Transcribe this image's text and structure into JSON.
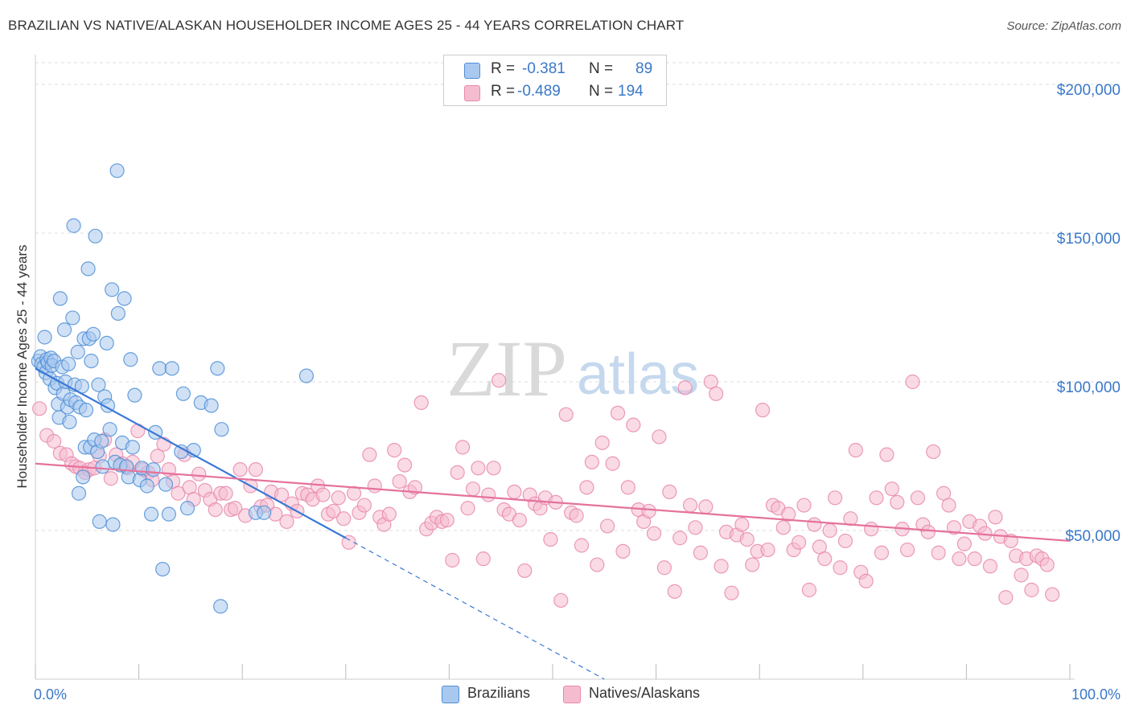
{
  "title": "BRAZILIAN VS NATIVE/ALASKAN HOUSEHOLDER INCOME AGES 25 - 44 YEARS CORRELATION CHART",
  "source": "Source: ZipAtlas.com",
  "watermark": {
    "zip": "ZIP",
    "atlas": "atlas"
  },
  "colors": {
    "blue_fill": "#a9c8ef",
    "blue_stroke": "#4f8fd6",
    "blue_line": "#3a78d6",
    "pink_fill": "#f5bcd0",
    "pink_stroke": "#e889ab",
    "pink_line": "#e5729c",
    "value_text": "#3a78c9",
    "grid": "#dddddd"
  },
  "legend": {
    "rows": [
      {
        "r_label": "R =",
        "r_value": "-0.381",
        "n_label": "N =",
        "n_value": "89"
      },
      {
        "r_label": "R =",
        "r_value": "-0.489",
        "n_label": "N =",
        "n_value": "194"
      }
    ]
  },
  "bottom_legend": [
    "Brazilians",
    "Natives/Alaskans"
  ],
  "chart_data": {
    "type": "scatter",
    "title": "BRAZILIAN VS NATIVE/ALASKAN HOUSEHOLDER INCOME AGES 25 - 44 YEARS CORRELATION CHART",
    "xlabel": "",
    "ylabel": "Householder Income Ages 25 - 44 years",
    "xlim": [
      0,
      100
    ],
    "ylim": [
      0,
      210000
    ],
    "x_tick_labels": [
      "0.0%",
      "100.0%"
    ],
    "y_ticks": [
      50000,
      100000,
      150000,
      200000
    ],
    "y_tick_labels": [
      "$50,000",
      "$100,000",
      "$150,000",
      "$200,000"
    ],
    "grid": true,
    "legend_position": "top-center",
    "series": [
      {
        "name": "Brazilians",
        "R": -0.381,
        "N": 89,
        "trend": {
          "x0": 0,
          "y0": 104500,
          "x1": 30,
          "y1": 47500,
          "dash_to_x": 55,
          "dash_to_y": 0
        },
        "points": [
          [
            0.3,
            107000
          ],
          [
            0.5,
            108500
          ],
          [
            0.6,
            106000
          ],
          [
            0.8,
            105000
          ],
          [
            0.9,
            115000
          ],
          [
            1.0,
            103000
          ],
          [
            1.1,
            107500
          ],
          [
            1.2,
            106500
          ],
          [
            1.4,
            101000
          ],
          [
            1.5,
            108000
          ],
          [
            1.6,
            105500
          ],
          [
            1.8,
            107000
          ],
          [
            1.9,
            98000
          ],
          [
            2.1,
            99500
          ],
          [
            2.2,
            92500
          ],
          [
            2.3,
            88000
          ],
          [
            2.4,
            128000
          ],
          [
            2.6,
            105000
          ],
          [
            2.7,
            96000
          ],
          [
            2.8,
            117500
          ],
          [
            2.9,
            100000
          ],
          [
            3.1,
            91500
          ],
          [
            3.2,
            106000
          ],
          [
            3.3,
            86500
          ],
          [
            3.4,
            94000
          ],
          [
            3.6,
            121500
          ],
          [
            3.7,
            152500
          ],
          [
            3.8,
            99000
          ],
          [
            3.9,
            93000
          ],
          [
            4.1,
            110000
          ],
          [
            4.2,
            62500
          ],
          [
            4.3,
            91500
          ],
          [
            4.5,
            98500
          ],
          [
            4.6,
            68000
          ],
          [
            4.7,
            114500
          ],
          [
            4.8,
            78000
          ],
          [
            4.9,
            90500
          ],
          [
            5.1,
            138000
          ],
          [
            5.2,
            114500
          ],
          [
            5.3,
            78000
          ],
          [
            5.4,
            107000
          ],
          [
            5.6,
            116000
          ],
          [
            5.7,
            80500
          ],
          [
            5.8,
            149000
          ],
          [
            6.0,
            76500
          ],
          [
            6.1,
            99000
          ],
          [
            6.2,
            53000
          ],
          [
            6.4,
            80000
          ],
          [
            6.5,
            71500
          ],
          [
            6.7,
            95000
          ],
          [
            6.9,
            113000
          ],
          [
            7.0,
            92000
          ],
          [
            7.2,
            84000
          ],
          [
            7.4,
            131000
          ],
          [
            7.5,
            52000
          ],
          [
            7.7,
            73000
          ],
          [
            7.9,
            171000
          ],
          [
            8.0,
            123000
          ],
          [
            8.2,
            72000
          ],
          [
            8.4,
            79500
          ],
          [
            8.6,
            128000
          ],
          [
            8.8,
            71500
          ],
          [
            9.0,
            68000
          ],
          [
            9.2,
            107500
          ],
          [
            9.4,
            78000
          ],
          [
            9.6,
            95500
          ],
          [
            10.1,
            67000
          ],
          [
            10.3,
            71000
          ],
          [
            10.8,
            65000
          ],
          [
            11.2,
            55500
          ],
          [
            11.4,
            70500
          ],
          [
            11.6,
            83000
          ],
          [
            12.0,
            104500
          ],
          [
            12.3,
            37000
          ],
          [
            12.6,
            65500
          ],
          [
            12.9,
            55500
          ],
          [
            13.2,
            104500
          ],
          [
            14.1,
            76500
          ],
          [
            14.3,
            96000
          ],
          [
            14.7,
            57500
          ],
          [
            15.3,
            77000
          ],
          [
            16.0,
            93000
          ],
          [
            17.0,
            92000
          ],
          [
            17.6,
            104500
          ],
          [
            17.9,
            24500
          ],
          [
            18.0,
            84000
          ],
          [
            21.3,
            56000
          ],
          [
            22.1,
            56000
          ],
          [
            26.2,
            102000
          ]
        ]
      },
      {
        "name": "Natives/Alaskans",
        "R": -0.489,
        "N": 194,
        "trend": {
          "x0": 0,
          "y0": 72500,
          "x1": 100,
          "y1": 46500
        },
        "points": [
          [
            0.4,
            91000
          ],
          [
            1.1,
            82000
          ],
          [
            1.8,
            80000
          ],
          [
            2.4,
            76000
          ],
          [
            3.0,
            75500
          ],
          [
            3.5,
            72500
          ],
          [
            3.9,
            71500
          ],
          [
            4.3,
            71000
          ],
          [
            4.8,
            69500
          ],
          [
            5.2,
            70500
          ],
          [
            5.7,
            71000
          ],
          [
            6.2,
            75000
          ],
          [
            6.7,
            80500
          ],
          [
            7.3,
            67500
          ],
          [
            7.8,
            75500
          ],
          [
            8.4,
            72500
          ],
          [
            8.9,
            71000
          ],
          [
            9.4,
            73000
          ],
          [
            9.9,
            83500
          ],
          [
            10.4,
            70500
          ],
          [
            10.9,
            69500
          ],
          [
            11.3,
            67000
          ],
          [
            11.8,
            75000
          ],
          [
            12.4,
            79000
          ],
          [
            12.9,
            70500
          ],
          [
            13.3,
            66500
          ],
          [
            13.8,
            62500
          ],
          [
            14.4,
            75500
          ],
          [
            14.9,
            64500
          ],
          [
            15.3,
            60500
          ],
          [
            15.8,
            69000
          ],
          [
            16.4,
            63500
          ],
          [
            16.9,
            60500
          ],
          [
            17.4,
            57000
          ],
          [
            17.9,
            62500
          ],
          [
            18.4,
            62500
          ],
          [
            18.9,
            57000
          ],
          [
            19.3,
            57500
          ],
          [
            19.8,
            70500
          ],
          [
            20.3,
            55000
          ],
          [
            20.8,
            65000
          ],
          [
            21.3,
            70500
          ],
          [
            21.8,
            58000
          ],
          [
            22.4,
            58500
          ],
          [
            22.8,
            63000
          ],
          [
            23.2,
            55500
          ],
          [
            23.8,
            62000
          ],
          [
            24.3,
            53000
          ],
          [
            24.8,
            59000
          ],
          [
            25.3,
            56500
          ],
          [
            25.8,
            62500
          ],
          [
            26.3,
            62000
          ],
          [
            26.8,
            60500
          ],
          [
            27.3,
            65000
          ],
          [
            27.8,
            62000
          ],
          [
            28.3,
            55500
          ],
          [
            28.8,
            56500
          ],
          [
            29.3,
            61000
          ],
          [
            29.8,
            54000
          ],
          [
            30.3,
            46000
          ],
          [
            30.8,
            62500
          ],
          [
            31.3,
            56000
          ],
          [
            31.8,
            58500
          ],
          [
            32.3,
            75500
          ],
          [
            32.8,
            65000
          ],
          [
            33.3,
            54500
          ],
          [
            33.7,
            52000
          ],
          [
            34.2,
            55500
          ],
          [
            34.7,
            77000
          ],
          [
            35.2,
            66500
          ],
          [
            35.7,
            72000
          ],
          [
            36.2,
            63000
          ],
          [
            36.7,
            64500
          ],
          [
            37.3,
            93000
          ],
          [
            37.8,
            50500
          ],
          [
            38.3,
            52500
          ],
          [
            38.8,
            54500
          ],
          [
            39.3,
            53000
          ],
          [
            39.8,
            53500
          ],
          [
            40.3,
            40000
          ],
          [
            40.8,
            69500
          ],
          [
            41.3,
            78000
          ],
          [
            41.8,
            57500
          ],
          [
            42.3,
            64000
          ],
          [
            42.8,
            71000
          ],
          [
            43.3,
            40500
          ],
          [
            43.8,
            62000
          ],
          [
            44.3,
            71000
          ],
          [
            44.8,
            100500
          ],
          [
            45.3,
            57000
          ],
          [
            45.8,
            55500
          ],
          [
            46.3,
            63000
          ],
          [
            46.8,
            53500
          ],
          [
            47.3,
            36500
          ],
          [
            47.8,
            62000
          ],
          [
            48.3,
            59000
          ],
          [
            48.8,
            57500
          ],
          [
            49.3,
            61000
          ],
          [
            49.8,
            47000
          ],
          [
            50.3,
            59500
          ],
          [
            50.8,
            26500
          ],
          [
            51.3,
            89000
          ],
          [
            51.8,
            56000
          ],
          [
            52.3,
            55000
          ],
          [
            52.8,
            45000
          ],
          [
            53.3,
            64500
          ],
          [
            53.8,
            73000
          ],
          [
            54.3,
            38500
          ],
          [
            54.8,
            79500
          ],
          [
            55.3,
            51500
          ],
          [
            55.8,
            72500
          ],
          [
            56.3,
            89500
          ],
          [
            56.8,
            43000
          ],
          [
            57.3,
            64500
          ],
          [
            57.8,
            85500
          ],
          [
            58.3,
            57000
          ],
          [
            58.8,
            53000
          ],
          [
            59.3,
            56500
          ],
          [
            59.8,
            49000
          ],
          [
            60.3,
            81500
          ],
          [
            60.8,
            37500
          ],
          [
            61.3,
            63000
          ],
          [
            61.8,
            29500
          ],
          [
            62.3,
            47500
          ],
          [
            62.8,
            98000
          ],
          [
            63.3,
            58500
          ],
          [
            63.8,
            51000
          ],
          [
            64.3,
            42500
          ],
          [
            64.8,
            58000
          ],
          [
            65.3,
            100000
          ],
          [
            65.8,
            96000
          ],
          [
            66.3,
            38000
          ],
          [
            66.8,
            49500
          ],
          [
            67.3,
            29000
          ],
          [
            67.8,
            48500
          ],
          [
            68.3,
            52000
          ],
          [
            68.8,
            47000
          ],
          [
            69.3,
            38500
          ],
          [
            69.8,
            43000
          ],
          [
            70.3,
            90500
          ],
          [
            70.8,
            43500
          ],
          [
            71.3,
            58500
          ],
          [
            71.8,
            57500
          ],
          [
            72.3,
            51000
          ],
          [
            72.8,
            55500
          ],
          [
            73.3,
            43500
          ],
          [
            73.8,
            46000
          ],
          [
            74.3,
            58500
          ],
          [
            74.8,
            30000
          ],
          [
            75.3,
            52000
          ],
          [
            75.8,
            44500
          ],
          [
            76.3,
            40500
          ],
          [
            76.8,
            50000
          ],
          [
            77.3,
            61000
          ],
          [
            77.8,
            37500
          ],
          [
            78.3,
            46500
          ],
          [
            78.8,
            54000
          ],
          [
            79.3,
            77000
          ],
          [
            79.8,
            36000
          ],
          [
            80.3,
            33000
          ],
          [
            80.8,
            50500
          ],
          [
            81.3,
            61000
          ],
          [
            81.8,
            42500
          ],
          [
            82.3,
            75500
          ],
          [
            82.8,
            64000
          ],
          [
            83.3,
            59500
          ],
          [
            83.8,
            50500
          ],
          [
            84.3,
            43500
          ],
          [
            84.8,
            100000
          ],
          [
            85.3,
            61000
          ],
          [
            85.8,
            52000
          ],
          [
            86.3,
            49500
          ],
          [
            86.8,
            76500
          ],
          [
            87.3,
            42500
          ],
          [
            87.8,
            62500
          ],
          [
            88.3,
            58500
          ],
          [
            88.8,
            51000
          ],
          [
            89.3,
            40500
          ],
          [
            89.8,
            45500
          ],
          [
            90.3,
            53000
          ],
          [
            90.8,
            40500
          ],
          [
            91.3,
            51500
          ],
          [
            91.8,
            49000
          ],
          [
            92.3,
            38000
          ],
          [
            92.8,
            54500
          ],
          [
            93.3,
            48000
          ],
          [
            93.8,
            27500
          ],
          [
            94.3,
            46500
          ],
          [
            94.8,
            41500
          ],
          [
            95.3,
            35000
          ],
          [
            95.8,
            40500
          ],
          [
            96.3,
            30000
          ],
          [
            96.8,
            41500
          ],
          [
            97.3,
            40500
          ],
          [
            97.8,
            38500
          ],
          [
            98.3,
            28500
          ]
        ]
      }
    ]
  }
}
